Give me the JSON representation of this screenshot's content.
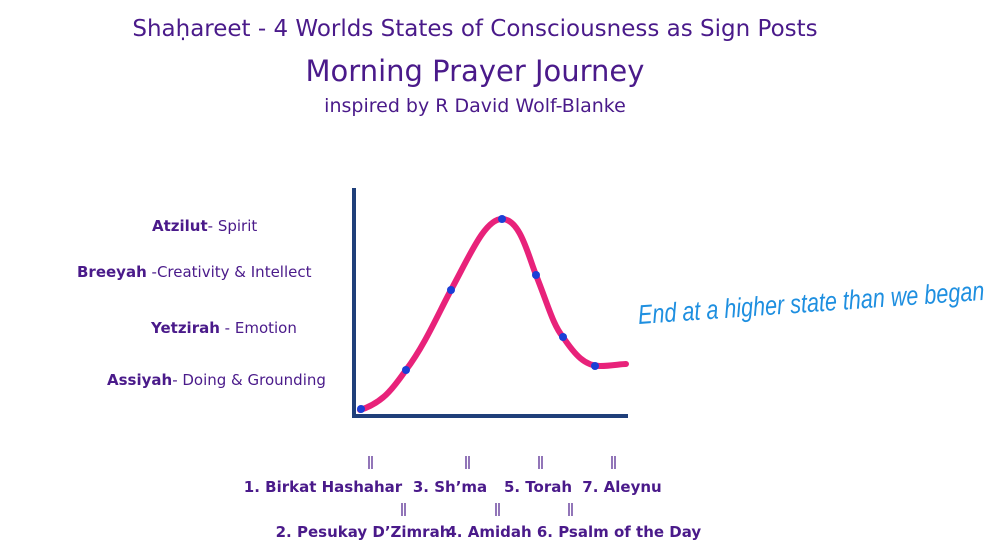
{
  "header": {
    "title": "Shaḥareet - 4 Worlds States of Consciousness as Sign Posts",
    "subtitle": "Morning  Prayer Journey",
    "credit": "inspired by R David Wolf-Blanke"
  },
  "levels": [
    {
      "name": "Atzilut",
      "desc": "- Spirit"
    },
    {
      "name": "Breeyah",
      "desc": " -Creativity  & Intellect"
    },
    {
      "name": "Yetzirah",
      "desc": " - Emotion"
    },
    {
      "name": "Assiyah",
      "desc": "- Doing & Grounding"
    }
  ],
  "annotation": "End at a higher state than we began",
  "steps_row1": [
    "1. Birkat Hashahar",
    "3. Sh’ma",
    "5. Torah",
    "7. Aleynu"
  ],
  "steps_row2": [
    "2. Pesukay D’Zimrah",
    "4. Amidah",
    "6. Psalm of the Day"
  ]
}
